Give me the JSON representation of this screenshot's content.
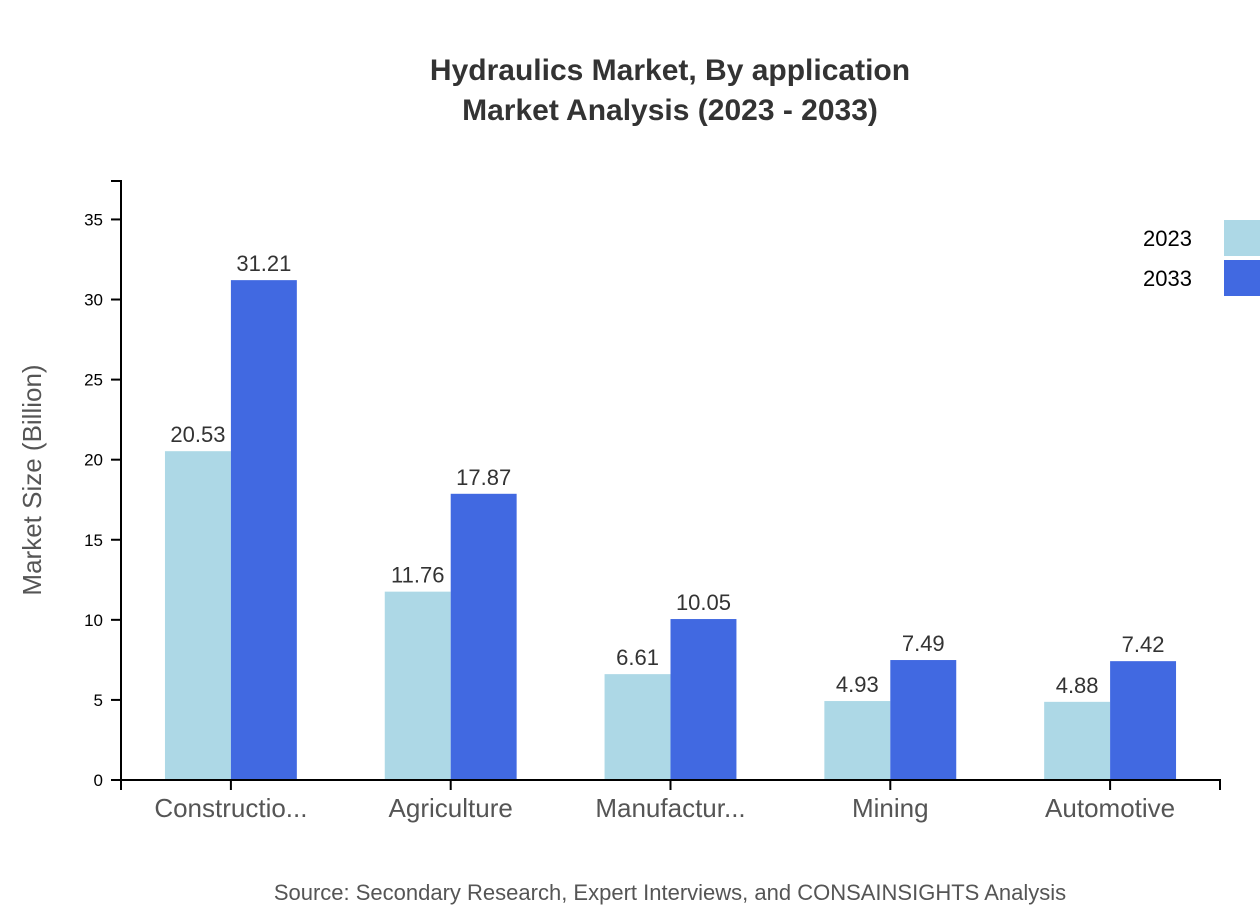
{
  "chart_data": {
    "type": "bar",
    "title": "Hydraulics Market, By application",
    "subtitle": "Market Analysis (2023 - 2033)",
    "xlabel": "",
    "ylabel": "Market Size (Billion)",
    "ylim": [
      0,
      37.4
    ],
    "yticks": [
      0,
      5,
      10,
      15,
      20,
      25,
      30,
      35
    ],
    "categories": [
      "Constructio...",
      "Agriculture",
      "Manufactur...",
      "Mining",
      "Automotive"
    ],
    "series": [
      {
        "name": "2023",
        "color": "#add8e6",
        "values": [
          20.53,
          11.76,
          6.61,
          4.93,
          4.88
        ]
      },
      {
        "name": "2033",
        "color": "#4169e1",
        "values": [
          31.21,
          17.87,
          10.05,
          7.49,
          7.42
        ]
      }
    ],
    "grid": false,
    "legend": "top-right",
    "source": "Source: Secondary Research, Expert Interviews, and CONSAINSIGHTS Analysis"
  }
}
